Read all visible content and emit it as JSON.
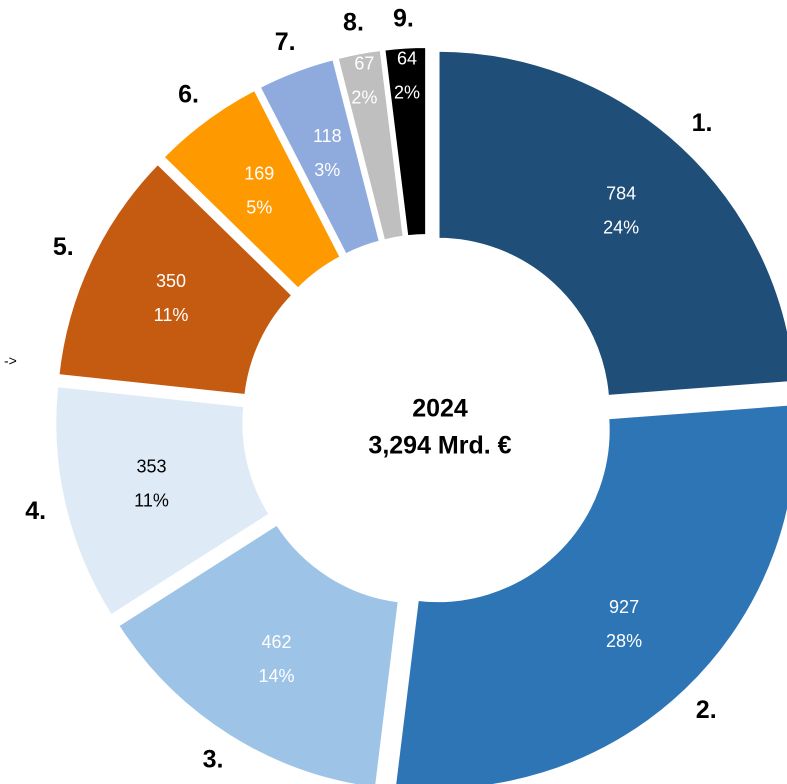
{
  "chart_data": {
    "type": "donut",
    "categories": [
      "1.",
      "2.",
      "3.",
      "4.",
      "5.",
      "6.",
      "7.",
      "8.",
      "9."
    ],
    "values": [
      784,
      927,
      462,
      353,
      350,
      169,
      118,
      67,
      64
    ],
    "percent_labels": [
      "24%",
      "28%",
      "14%",
      "11%",
      "11%",
      "5%",
      "3%",
      "2%",
      "2%"
    ],
    "colors": [
      "#1f4e79",
      "#2e75b6",
      "#9dc3e6",
      "#deebf7",
      "#c55a11",
      "#ff9900",
      "#8faadc",
      "#bfbfbf",
      "#000000"
    ],
    "label_colors": [
      "#ffffff",
      "#ffffff",
      "#ffffff",
      "#000000",
      "#ffffff",
      "#ffffff",
      "#ffffff",
      "#ffffff",
      "#ffffff"
    ],
    "center_title": "2024",
    "center_subtitle": "3,294 Mrd. €",
    "annotation": "->"
  }
}
